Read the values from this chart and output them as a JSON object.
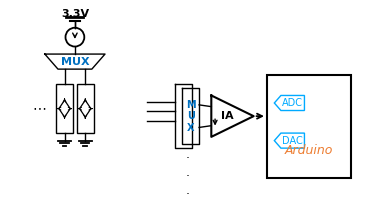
{
  "bg_color": "#ffffff",
  "line_color": "#000000",
  "mux_text_color": "#0070c0",
  "arduino_text_color": "#ed7d31",
  "adc_dac_border_color": "#00aaff",
  "adc_dac_text_color": "#00aaff",
  "voltage_label": "3.3V",
  "mux1_label": "MUX",
  "mux2_label": "M\nU\nX",
  "ia_label": "IA",
  "arduino_label": "Arduino",
  "adc_label": "ADC",
  "dac_label": "DAC",
  "dots_label": "⋯",
  "dots2_label": ".\n.\n."
}
